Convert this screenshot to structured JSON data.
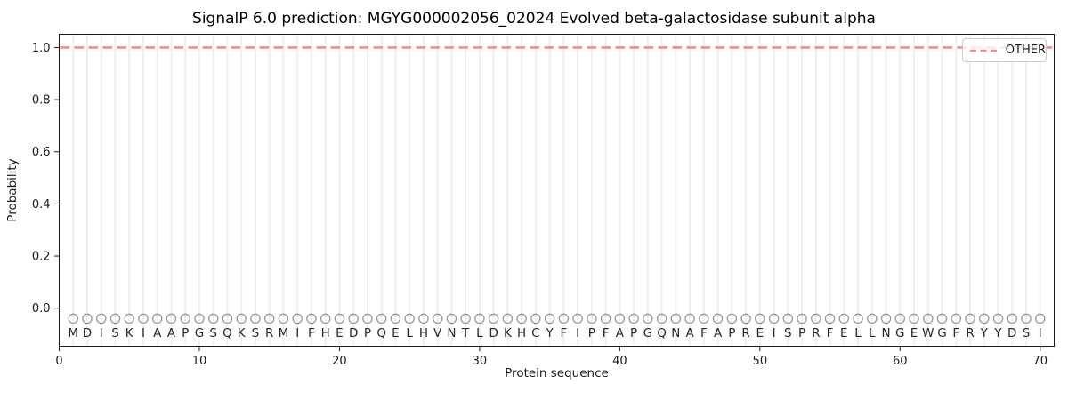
{
  "title": "SignalP 6.0 prediction: MGYG000002056_02024 Evolved beta-galactosidase subunit alpha",
  "axes": {
    "xlabel": "Protein sequence",
    "ylabel": "Probability"
  },
  "legend": {
    "position": "upper right",
    "entries": [
      {
        "label": "OTHER",
        "color": "#f08080",
        "style": "dashed"
      }
    ]
  },
  "colors": {
    "other_line": "#f08080",
    "gridline": "#efefef",
    "marker": "#999999",
    "letter": "#262626",
    "axis": "#1a1a1a",
    "background": "#ffffff"
  },
  "chart_data": {
    "type": "line",
    "title": "SignalP 6.0 prediction: MGYG000002056_02024 Evolved beta-galactosidase subunit alpha",
    "xlabel": "Protein sequence",
    "ylabel": "Probability",
    "xlim": [
      0,
      71
    ],
    "ylim": [
      -0.146,
      1.051
    ],
    "xticks": [
      0,
      10,
      20,
      30,
      40,
      50,
      60,
      70
    ],
    "yticks": [
      0.0,
      0.2,
      0.4,
      0.6,
      0.8,
      1.0
    ],
    "grid": "vertical line at every residue position",
    "legend_position": "upper right",
    "series": [
      {
        "name": "OTHER",
        "type": "constant-line",
        "y": 1.0,
        "x_start": 0,
        "x_end": 71,
        "style": "dashed",
        "color": "#f08080"
      }
    ],
    "sequence": "MDISKIAAPGSQKSRMIFHEDPQELHVNTLDKHCYFIPFAPGQNAFAPREISPRFELLNGEWGFRYYDSI",
    "sequence_length": 70,
    "sequence_markers": {
      "shape": "open-circle",
      "color": "#999999",
      "y": -0.04
    },
    "sequence_letter_y": -0.095
  }
}
